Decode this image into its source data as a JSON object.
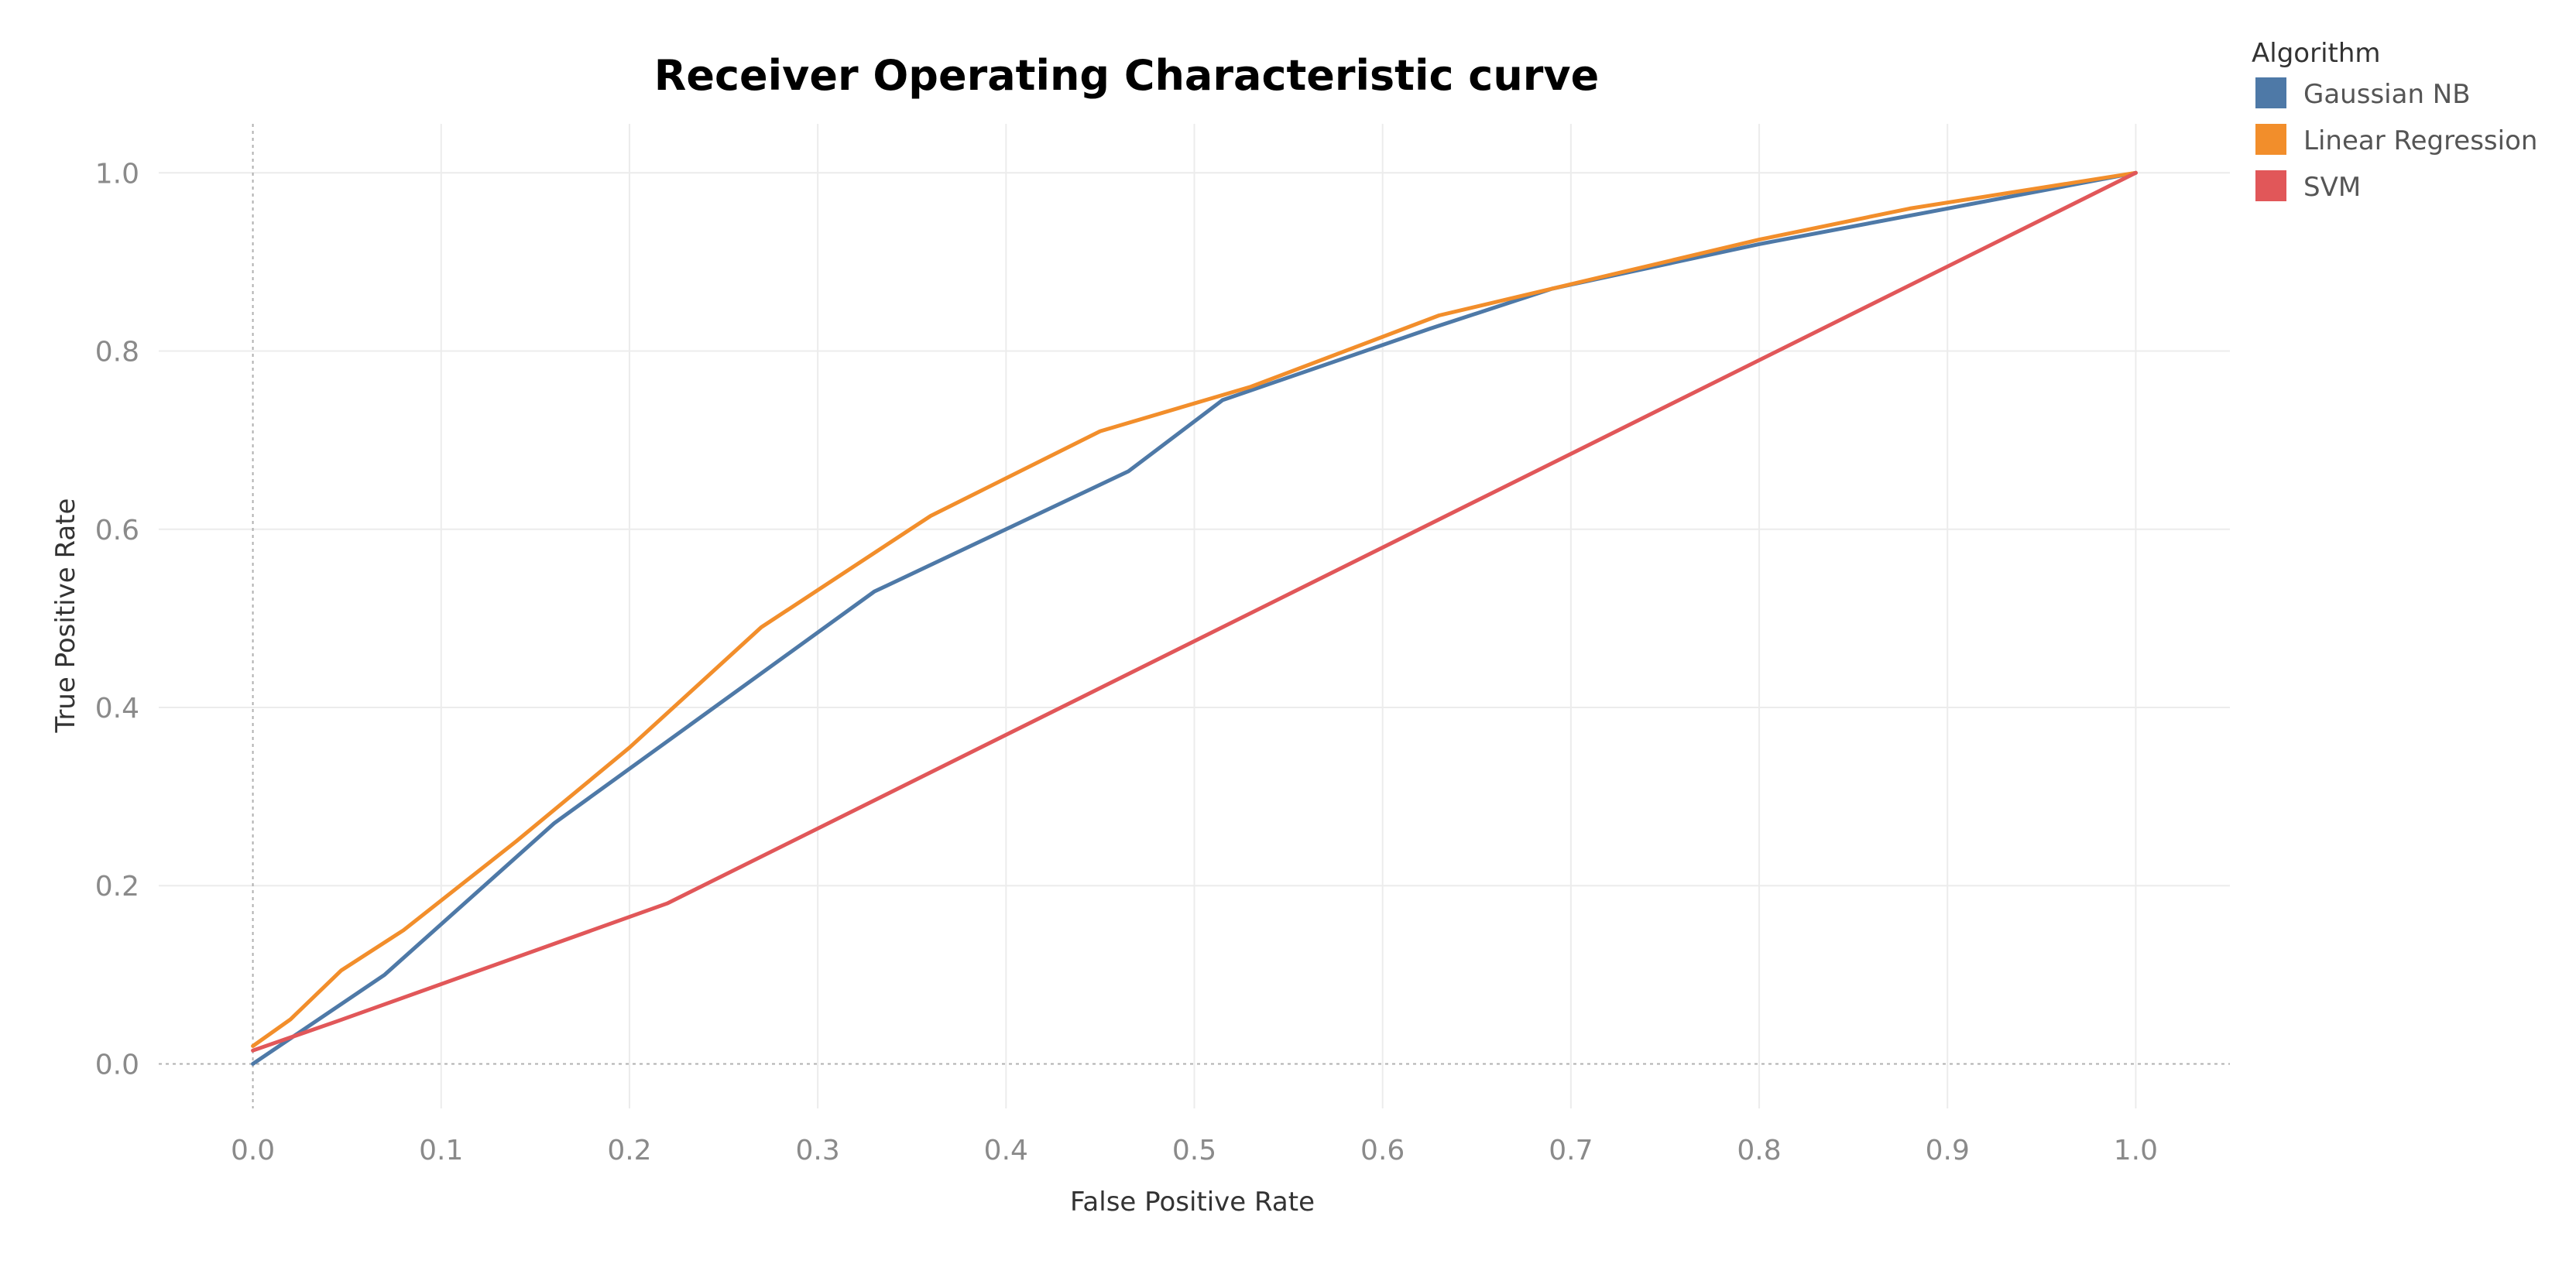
{
  "chart_data": {
    "type": "line",
    "title": "Receiver Operating Characteristic curve",
    "xlabel": "False Positive Rate",
    "ylabel": "True Positive Rate",
    "xlim": [
      -0.05,
      1.05
    ],
    "ylim": [
      -0.05,
      1.055
    ],
    "x_ticks": [
      0.0,
      0.1,
      0.2,
      0.3,
      0.4,
      0.5,
      0.6,
      0.7,
      0.8,
      0.9,
      1.0
    ],
    "x_tick_labels": [
      "0.0",
      "0.1",
      "0.2",
      "0.3",
      "0.4",
      "0.5",
      "0.6",
      "0.7",
      "0.8",
      "0.9",
      "1.0"
    ],
    "y_ticks": [
      0.0,
      0.2,
      0.4,
      0.6,
      0.8,
      1.0
    ],
    "y_tick_labels": [
      "0.0",
      "0.2",
      "0.4",
      "0.6",
      "0.8",
      "1.0"
    ],
    "grid": true,
    "zero_lines": true,
    "legend": {
      "title": "Algorithm",
      "placement": "top-right"
    },
    "series": [
      {
        "name": "Gaussian NB",
        "color": "#4e79a7",
        "points": [
          [
            0.0,
            0.0
          ],
          [
            0.07,
            0.1
          ],
          [
            0.16,
            0.27
          ],
          [
            0.33,
            0.53
          ],
          [
            0.465,
            0.665
          ],
          [
            0.515,
            0.745
          ],
          [
            0.625,
            0.825
          ],
          [
            0.69,
            0.87
          ],
          [
            0.8,
            0.92
          ],
          [
            0.9,
            0.96
          ],
          [
            1.0,
            1.0
          ]
        ]
      },
      {
        "name": "Linear Regression",
        "color": "#f28e2b",
        "points": [
          [
            0.0,
            0.02
          ],
          [
            0.02,
            0.05
          ],
          [
            0.047,
            0.105
          ],
          [
            0.08,
            0.15
          ],
          [
            0.14,
            0.25
          ],
          [
            0.2,
            0.355
          ],
          [
            0.27,
            0.49
          ],
          [
            0.36,
            0.615
          ],
          [
            0.45,
            0.71
          ],
          [
            0.53,
            0.76
          ],
          [
            0.63,
            0.84
          ],
          [
            0.7,
            0.875
          ],
          [
            0.8,
            0.925
          ],
          [
            0.88,
            0.96
          ],
          [
            0.97,
            0.99
          ],
          [
            1.0,
            1.0
          ]
        ]
      },
      {
        "name": "SVM",
        "color": "#e15759",
        "points": [
          [
            0.0,
            0.015
          ],
          [
            0.045,
            0.048
          ],
          [
            0.22,
            0.18
          ],
          [
            1.0,
            1.0
          ]
        ]
      }
    ]
  }
}
